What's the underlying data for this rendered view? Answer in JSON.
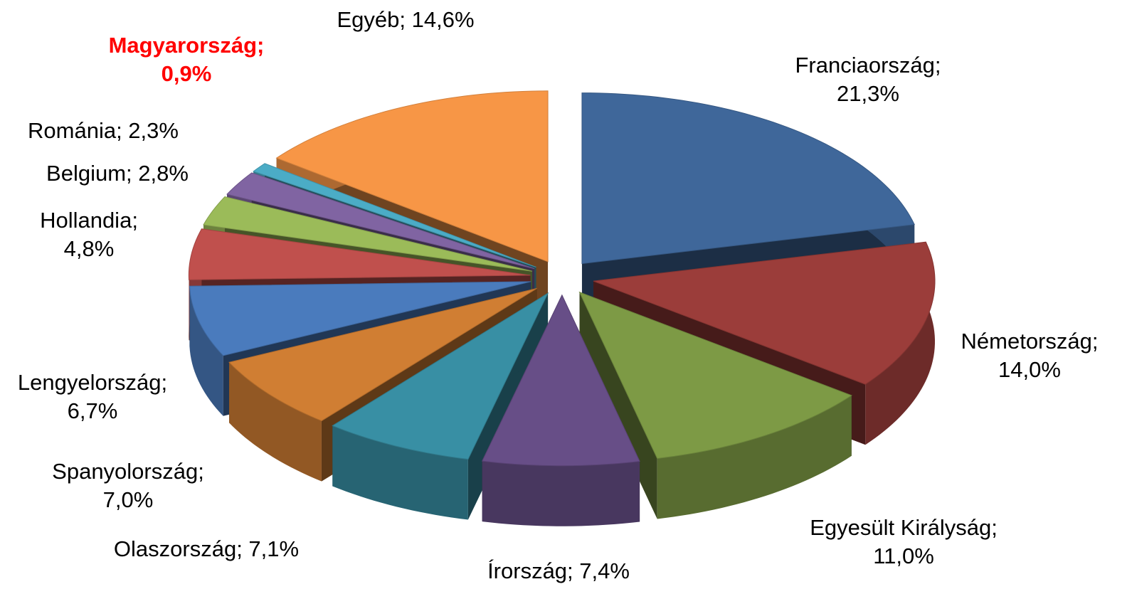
{
  "chart_data": {
    "type": "pie3d",
    "values": [
      21.3,
      14.0,
      11.0,
      7.4,
      7.1,
      7.0,
      6.7,
      4.8,
      2.8,
      2.3,
      0.9,
      14.6
    ],
    "value_labels": [
      "Franciaország; 21,3%",
      "Németország; 14,0%",
      "Egyesült Királyság; 11,0%",
      "Írország; 7,4%",
      "Olaszország; 7,1%",
      "Spanyolország; 7,0%",
      "Lengyelország; 6,7%",
      "Hollandia; 4,8%",
      "Belgium; 2,8%",
      "Románia; 2,3%",
      "Magyarország; 0,9%",
      "Egyéb; 14,6%"
    ],
    "colors": [
      "#3f679a",
      "#9b3d3a",
      "#7d9a45",
      "#674e87",
      "#388fa4",
      "#d07e33",
      "#4a7bbd",
      "#c0504d",
      "#9bbb59",
      "#8064a2",
      "#4bacc6",
      "#f79646"
    ],
    "label_colors": [
      "#000000",
      "#000000",
      "#000000",
      "#000000",
      "#000000",
      "#000000",
      "#000000",
      "#000000",
      "#000000",
      "#000000",
      "#ff0000",
      "#000000"
    ]
  }
}
